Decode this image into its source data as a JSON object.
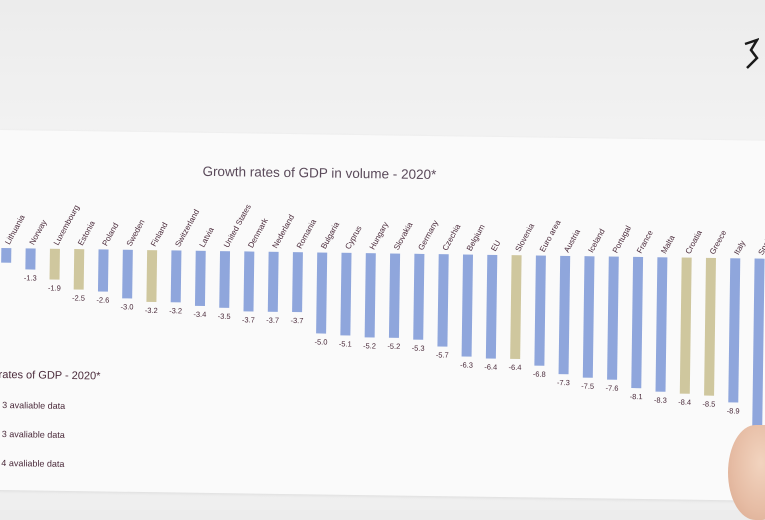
{
  "chart_data": {
    "type": "bar",
    "title": "Growth rates of GDP in volume - 2020*",
    "categories": [
      "Lithuania",
      "Norway",
      "Luxembourg",
      "Estonia",
      "Poland",
      "Sweden",
      "Finland",
      "Switzerland",
      "Latvia",
      "United States",
      "Denmark",
      "Nederland",
      "Romania",
      "Bulgaria",
      "Cyprus",
      "Hungary",
      "Slovakia",
      "Germany",
      "Czechia",
      "Belgium",
      "EU",
      "Slovenia",
      "Euro area",
      "Austria",
      "Iceland",
      "Portugal",
      "France",
      "Malta",
      "Croatia",
      "Greece",
      "Italy",
      "Spain"
    ],
    "values": [
      -0.9,
      -1.3,
      -1.9,
      -2.5,
      -2.6,
      -3.0,
      -3.2,
      -3.2,
      -3.4,
      -3.5,
      -3.7,
      -3.7,
      -3.7,
      -5.0,
      -5.1,
      -5.2,
      -5.2,
      -5.3,
      -5.7,
      -6.3,
      -6.4,
      -6.4,
      -6.8,
      -7.3,
      -7.5,
      -7.6,
      -8.1,
      -8.3,
      -8.4,
      -8.5,
      -8.9,
      -11.0
    ],
    "value_labels": [
      "",
      "-1.3",
      "-1.9",
      "-2.5",
      "-2.6",
      "-3.0",
      "-3.2",
      "-3.2",
      "-3.4",
      "-3.5",
      "-3.7",
      "-3.7",
      "-3.7",
      "-5.0",
      "-5.1",
      "-5.2",
      "-5.2",
      "-5.3",
      "-5.7",
      "-6.3",
      "-6.4",
      "-6.4",
      "-6.8",
      "-7.3",
      "-7.5",
      "-7.6",
      "-8.1",
      "-8.3",
      "-8.4",
      "-8.5",
      "-8.9",
      ""
    ],
    "bar_groups": [
      "a",
      "a",
      "b",
      "b",
      "a",
      "a",
      "b",
      "a",
      "a",
      "a",
      "a",
      "a",
      "a",
      "a",
      "a",
      "a",
      "a",
      "a",
      "a",
      "a",
      "a",
      "b",
      "a",
      "a",
      "a",
      "a",
      "a",
      "a",
      "b",
      "b",
      "a",
      "a"
    ],
    "colors": {
      "a": "#8fa6dc",
      "b": "#cfc79e"
    }
  },
  "legend": {
    "title": "rates of GDP - 2020*",
    "items": [
      "3 avaliable data",
      "3 avaliable data",
      "4 avaliable data"
    ],
    "colors": [
      "#8fa6dc",
      "#cfc79e",
      "#8fa6dc"
    ]
  }
}
